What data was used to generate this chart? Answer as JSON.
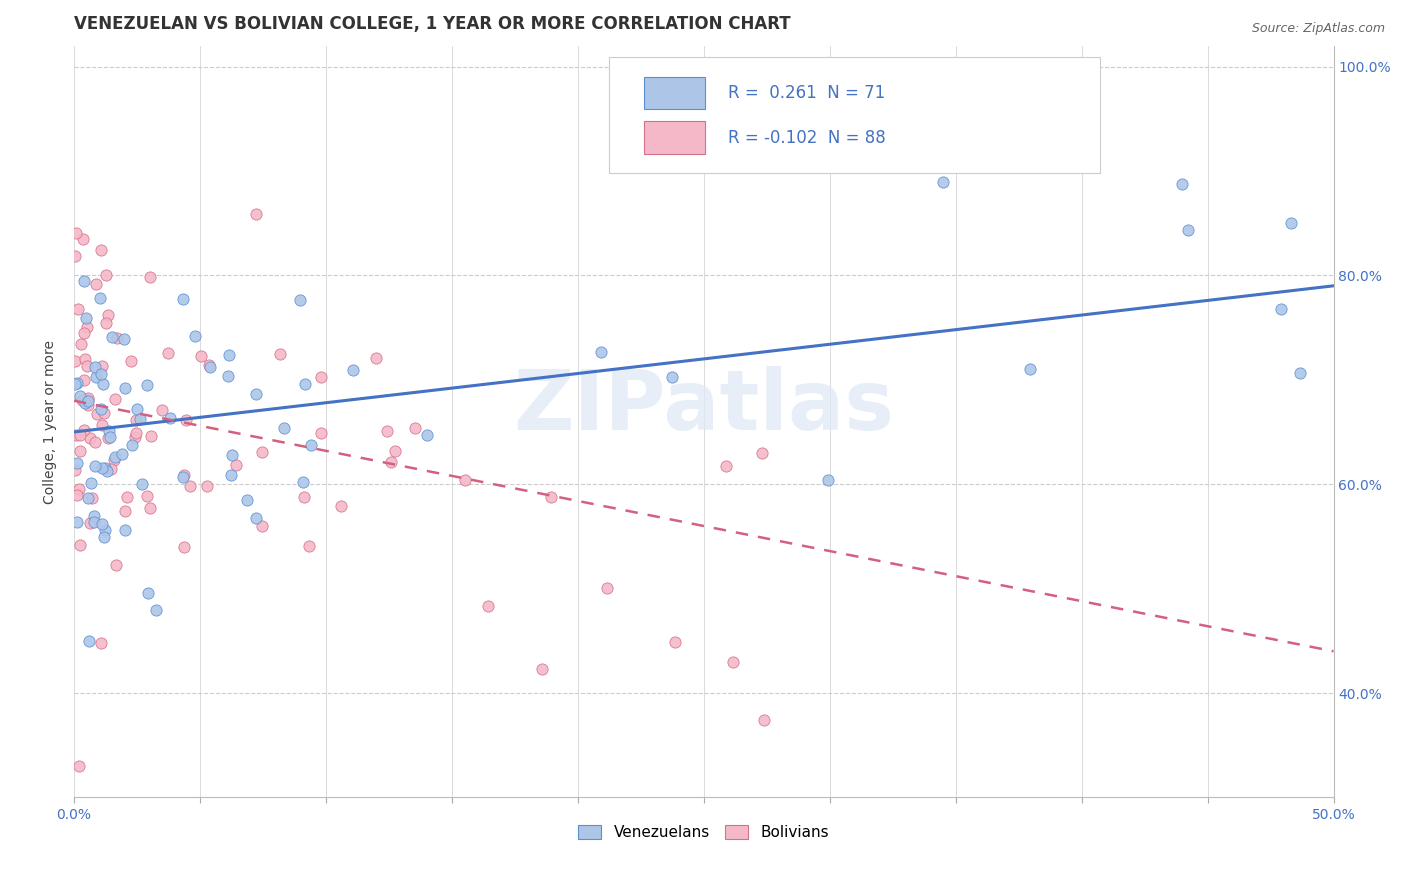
{
  "title": "VENEZUELAN VS BOLIVIAN COLLEGE, 1 YEAR OR MORE CORRELATION CHART",
  "source": "Source: ZipAtlas.com",
  "ylabel": "College, 1 year or more",
  "xlim": [
    0.0,
    0.5
  ],
  "ylim": [
    0.3,
    1.02
  ],
  "xticks": [
    0.0,
    0.05,
    0.1,
    0.15,
    0.2,
    0.25,
    0.3,
    0.35,
    0.4,
    0.45,
    0.5
  ],
  "xtick_labels": [
    "0.0%",
    "",
    "",
    "",
    "",
    "",
    "",
    "",
    "",
    "",
    "50.0%"
  ],
  "yticks_right": [
    0.4,
    0.6,
    0.8,
    1.0
  ],
  "ytick_labels_right": [
    "40.0%",
    "60.0%",
    "80.0%",
    "100.0%"
  ],
  "legend_R_blue": "0.261",
  "legend_N_blue": "71",
  "legend_R_pink": "-0.102",
  "legend_N_pink": "88",
  "blue_color": "#adc6e8",
  "blue_edge_color": "#5b8fd4",
  "blue_line_color": "#4472c4",
  "pink_color": "#f5b8c8",
  "pink_edge_color": "#d4708a",
  "pink_line_color": "#d46080",
  "watermark": "ZIPatlas",
  "background_color": "#ffffff",
  "grid_color": "#cccccc",
  "title_fontsize": 12,
  "axis_label_fontsize": 10,
  "tick_fontsize": 10,
  "legend_fontsize": 12,
  "blue_line_y0": 0.65,
  "blue_line_y1": 0.79,
  "pink_line_y0": 0.68,
  "pink_line_y1": 0.44
}
